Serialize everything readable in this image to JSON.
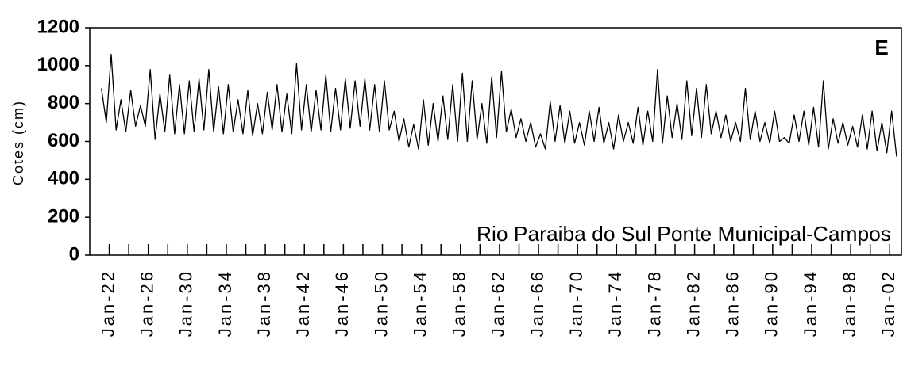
{
  "chart_data": {
    "type": "line",
    "title": "E",
    "annotation": "Rio Paraiba do Sul  Ponte Municipal-Campos",
    "y_label": "Cotes (cm)",
    "color": "#000000",
    "xlim": [
      1920,
      2003.2
    ],
    "ylim": [
      0,
      1200
    ],
    "yticks": [
      0,
      200,
      400,
      600,
      800,
      1000,
      1200
    ],
    "xticks": [
      {
        "value": 1922,
        "label": "Jan-22"
      },
      {
        "value": 1926,
        "label": "Jan-26"
      },
      {
        "value": 1930,
        "label": "Jan-30"
      },
      {
        "value": 1934,
        "label": "Jan-34"
      },
      {
        "value": 1938,
        "label": "Jan-38"
      },
      {
        "value": 1942,
        "label": "Jan-42"
      },
      {
        "value": 1946,
        "label": "Jan-46"
      },
      {
        "value": 1950,
        "label": "Jan-50"
      },
      {
        "value": 1954,
        "label": "Jan-54"
      },
      {
        "value": 1958,
        "label": "Jan-58"
      },
      {
        "value": 1962,
        "label": "Jan-62"
      },
      {
        "value": 1966,
        "label": "Jan-66"
      },
      {
        "value": 1970,
        "label": "Jan-70"
      },
      {
        "value": 1974,
        "label": "Jan-74"
      },
      {
        "value": 1978,
        "label": "Jan-78"
      },
      {
        "value": 1982,
        "label": "Jan-82"
      },
      {
        "value": 1986,
        "label": "Jan-86"
      },
      {
        "value": 1990,
        "label": "Jan-90"
      },
      {
        "value": 1994,
        "label": "Jan-94"
      },
      {
        "value": 1998,
        "label": "Jan-98"
      },
      {
        "value": 2002,
        "label": "Jan-02"
      }
    ],
    "minor_xticks": [
      1924,
      1928,
      1932,
      1936,
      1940,
      1944,
      1948,
      1952,
      1956,
      1960,
      1964,
      1968,
      1972,
      1976,
      1980,
      1984,
      1988,
      1992,
      1996,
      2000
    ],
    "x": [
      1921.2,
      1921.7,
      1922.2,
      1922.7,
      1923.2,
      1923.7,
      1924.2,
      1924.7,
      1925.2,
      1925.7,
      1926.2,
      1926.7,
      1927.2,
      1927.7,
      1928.2,
      1928.7,
      1929.2,
      1929.7,
      1930.2,
      1930.7,
      1931.2,
      1931.7,
      1932.2,
      1932.7,
      1933.2,
      1933.7,
      1934.2,
      1934.7,
      1935.2,
      1935.7,
      1936.2,
      1936.7,
      1937.2,
      1937.7,
      1938.2,
      1938.7,
      1939.2,
      1939.7,
      1940.2,
      1940.7,
      1941.2,
      1941.7,
      1942.2,
      1942.7,
      1943.2,
      1943.7,
      1944.2,
      1944.7,
      1945.2,
      1945.7,
      1946.2,
      1946.7,
      1947.2,
      1947.7,
      1948.2,
      1948.7,
      1949.2,
      1949.7,
      1950.2,
      1950.7,
      1951.2,
      1951.7,
      1952.2,
      1952.7,
      1953.2,
      1953.7,
      1954.2,
      1954.7,
      1955.2,
      1955.7,
      1956.2,
      1956.7,
      1957.2,
      1957.7,
      1958.2,
      1958.7,
      1959.2,
      1959.7,
      1960.2,
      1960.7,
      1961.2,
      1961.7,
      1962.2,
      1962.7,
      1963.2,
      1963.7,
      1964.2,
      1964.7,
      1965.2,
      1965.7,
      1966.2,
      1966.7,
      1967.2,
      1967.7,
      1968.2,
      1968.7,
      1969.2,
      1969.7,
      1970.2,
      1970.7,
      1971.2,
      1971.7,
      1972.2,
      1972.7,
      1973.2,
      1973.7,
      1974.2,
      1974.7,
      1975.2,
      1975.7,
      1976.2,
      1976.7,
      1977.2,
      1977.7,
      1978.2,
      1978.7,
      1979.2,
      1979.7,
      1980.2,
      1980.7,
      1981.2,
      1981.7,
      1982.2,
      1982.7,
      1983.2,
      1983.7,
      1984.2,
      1984.7,
      1985.2,
      1985.7,
      1986.2,
      1986.7,
      1987.2,
      1987.7,
      1988.2,
      1988.7,
      1989.2,
      1989.7,
      1990.2,
      1990.7,
      1991.2,
      1991.7,
      1992.2,
      1992.7,
      1993.2,
      1993.7,
      1994.2,
      1994.7,
      1995.2,
      1995.7,
      1996.2,
      1996.7,
      1997.2,
      1997.7,
      1998.2,
      1998.7,
      1999.2,
      1999.7,
      2000.2,
      2000.7,
      2001.2,
      2001.7,
      2002.2,
      2002.7
    ],
    "values": [
      880,
      700,
      1060,
      660,
      820,
      650,
      870,
      680,
      790,
      680,
      980,
      610,
      850,
      650,
      950,
      640,
      900,
      640,
      920,
      650,
      930,
      660,
      980,
      650,
      890,
      640,
      900,
      650,
      820,
      640,
      870,
      630,
      800,
      640,
      860,
      660,
      900,
      650,
      850,
      640,
      1010,
      660,
      900,
      650,
      870,
      660,
      950,
      650,
      880,
      660,
      930,
      670,
      920,
      680,
      930,
      660,
      900,
      650,
      920,
      660,
      760,
      600,
      720,
      570,
      690,
      560,
      820,
      580,
      800,
      600,
      840,
      610,
      900,
      600,
      960,
      600,
      920,
      610,
      800,
      590,
      940,
      620,
      970,
      650,
      770,
      620,
      720,
      600,
      700,
      570,
      640,
      560,
      810,
      600,
      790,
      590,
      760,
      590,
      700,
      580,
      760,
      600,
      780,
      590,
      700,
      560,
      740,
      600,
      700,
      590,
      780,
      580,
      760,
      600,
      980,
      590,
      840,
      620,
      800,
      610,
      920,
      630,
      880,
      620,
      900,
      640,
      760,
      620,
      740,
      600,
      700,
      600,
      880,
      610,
      760,
      600,
      700,
      590,
      760,
      600,
      620,
      590,
      740,
      600,
      760,
      580,
      780,
      570,
      920,
      560,
      720,
      590,
      700,
      580,
      680,
      570,
      740,
      560,
      760,
      550,
      700,
      540,
      760,
      520
    ]
  }
}
